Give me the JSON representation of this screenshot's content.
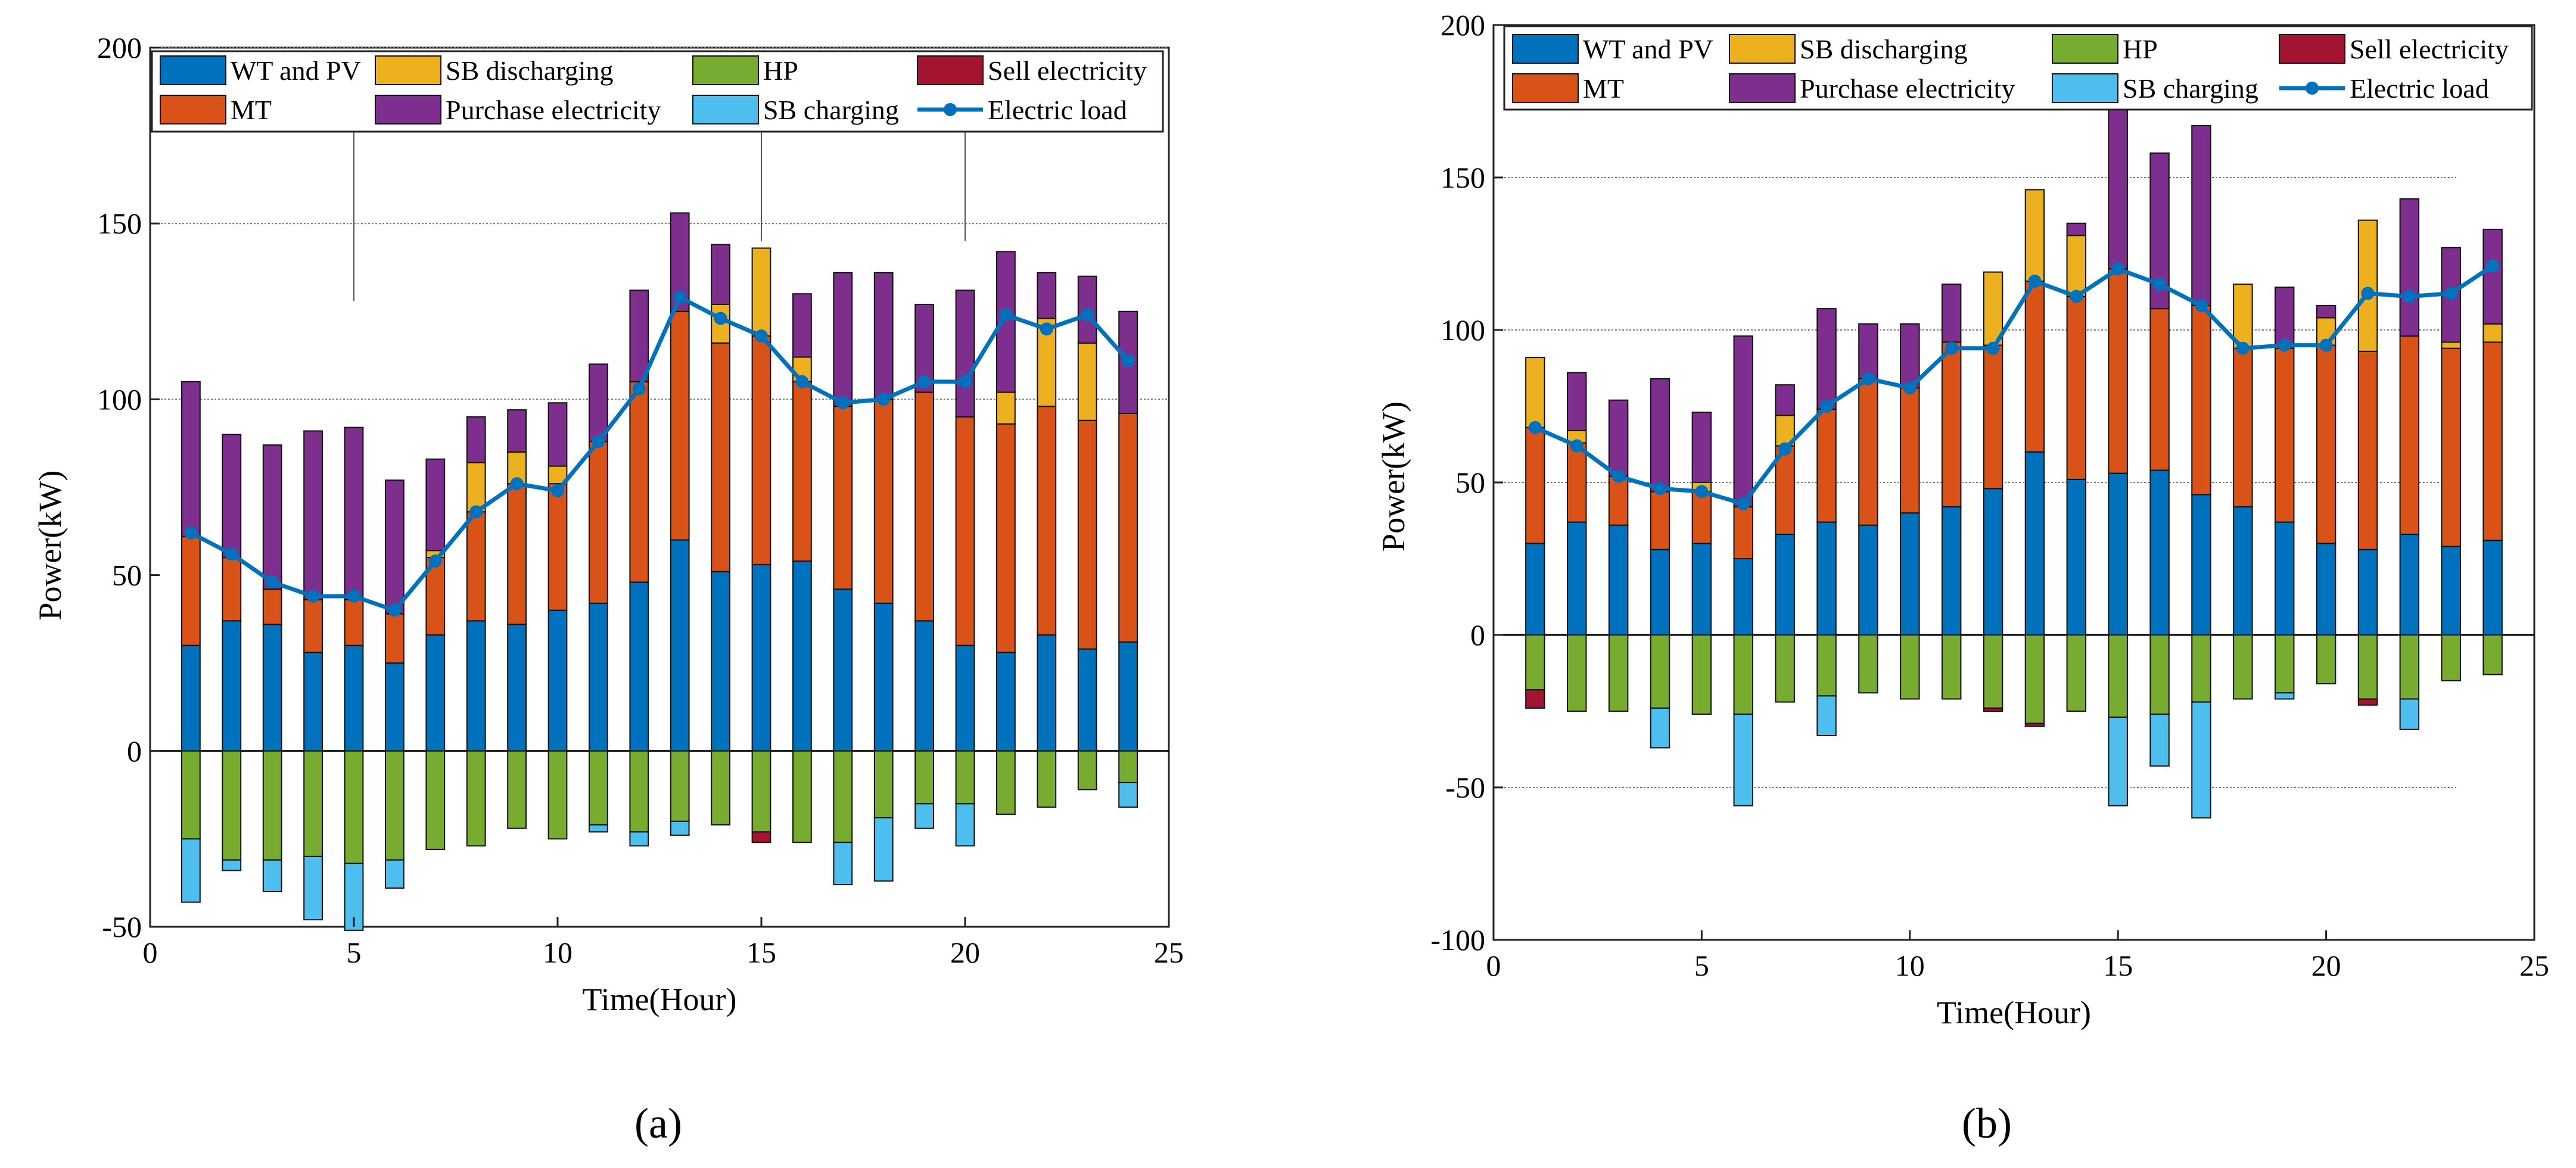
{
  "colors": {
    "wt_pv": "#0072BD",
    "mt": "#D95319",
    "sb_dis": "#EDB120",
    "purchase": "#7E2F8E",
    "hp": "#77AC30",
    "sb_ch": "#4DBEEE",
    "sell": "#A2142F",
    "load": "#0072BD"
  },
  "chart_data": [
    {
      "type": "bar",
      "id": "a",
      "panel_label": "(a)",
      "title": "",
      "xlabel": "Time(Hour)",
      "ylabel": "Power(kW)",
      "xlim": [
        0,
        25
      ],
      "ylim": [
        -50,
        200
      ],
      "xticks": [
        0,
        5,
        10,
        15,
        20,
        25
      ],
      "yticks": [
        -50,
        0,
        50,
        100,
        150,
        200
      ],
      "hours": [
        1,
        2,
        3,
        4,
        5,
        6,
        7,
        8,
        9,
        10,
        11,
        12,
        13,
        14,
        15,
        16,
        17,
        18,
        19,
        20,
        21,
        22,
        23,
        24
      ],
      "legend": [
        {
          "key": "wt_pv",
          "label": "WT and PV",
          "kind": "bar"
        },
        {
          "key": "sb_dis",
          "label": "SB discharging",
          "kind": "bar"
        },
        {
          "key": "hp",
          "label": "HP",
          "kind": "bar"
        },
        {
          "key": "sell",
          "label": "Sell electricity",
          "kind": "bar"
        },
        {
          "key": "mt",
          "label": "MT",
          "kind": "bar"
        },
        {
          "key": "purchase",
          "label": "Purchase electricity",
          "kind": "bar"
        },
        {
          "key": "sb_ch",
          "label": "SB charging",
          "kind": "bar"
        },
        {
          "key": "load",
          "label": "Electric load",
          "kind": "line"
        }
      ],
      "positive_series": [
        {
          "key": "wt_pv",
          "name": "WT and PV",
          "values": [
            30,
            37,
            36,
            28,
            30,
            25,
            33,
            37,
            36,
            40,
            42,
            48,
            60,
            51,
            53,
            54,
            46,
            42,
            37,
            30,
            28,
            33,
            29,
            31
          ]
        },
        {
          "key": "mt",
          "name": "MT",
          "values": [
            31,
            18,
            10,
            15,
            13,
            14,
            22,
            31,
            40,
            36,
            46,
            57,
            65,
            65,
            65,
            51,
            52,
            58,
            65,
            65,
            65,
            65,
            65,
            65
          ]
        },
        {
          "key": "sb_dis",
          "name": "SB discharging",
          "values": [
            0,
            0,
            0,
            0,
            0,
            0,
            2,
            14,
            9,
            5,
            0,
            0,
            0,
            11,
            25,
            7,
            0,
            0,
            0,
            0,
            9,
            25,
            22,
            0
          ]
        },
        {
          "key": "purchase",
          "name": "Purchase electricity",
          "values": [
            44,
            35,
            41,
            48,
            49,
            38,
            26,
            13,
            12,
            18,
            22,
            26,
            28,
            17,
            0,
            18,
            38,
            36,
            25,
            36,
            40,
            13,
            19,
            29
          ]
        }
      ],
      "negative_series": [
        {
          "key": "hp",
          "name": "HP",
          "values": [
            -25,
            -31,
            -31,
            -30,
            -32,
            -31,
            -28,
            -27,
            -22,
            -25,
            -21,
            -23,
            -20,
            -21,
            -23,
            -26,
            -26,
            -19,
            -15,
            -15,
            -18,
            -16,
            -11,
            -9
          ]
        },
        {
          "key": "sb_ch",
          "name": "SB charging",
          "values": [
            -18,
            -3,
            -9,
            -18,
            -19,
            -8,
            0,
            0,
            0,
            0,
            -2,
            -4,
            -4,
            0,
            0,
            0,
            -12,
            -18,
            -7,
            -12,
            0,
            0,
            0,
            -7
          ]
        },
        {
          "key": "sell",
          "name": "Sell electricity",
          "values": [
            0,
            0,
            0,
            0,
            0,
            0,
            0,
            0,
            0,
            0,
            0,
            0,
            0,
            0,
            -3,
            0,
            0,
            0,
            0,
            0,
            0,
            0,
            0,
            0
          ]
        }
      ],
      "load": {
        "name": "Electric load",
        "values": [
          62,
          56,
          48,
          44,
          44,
          40,
          54,
          68,
          76,
          74,
          88,
          103,
          129,
          123,
          118,
          105,
          99,
          100,
          105,
          105,
          124,
          120,
          124,
          111
        ]
      }
    },
    {
      "type": "bar",
      "id": "b",
      "panel_label": "(b)",
      "title": "",
      "xlabel": "Time(Hour)",
      "ylabel": "Power(kW)",
      "xlim": [
        0,
        25
      ],
      "ylim": [
        -100,
        200
      ],
      "xticks": [
        0,
        5,
        10,
        15,
        20,
        25
      ],
      "yticks": [
        -100,
        -50,
        0,
        50,
        100,
        150,
        200
      ],
      "hours": [
        1,
        2,
        3,
        4,
        5,
        6,
        7,
        8,
        9,
        10,
        11,
        12,
        13,
        14,
        15,
        16,
        17,
        18,
        19,
        20,
        21,
        22,
        23,
        24
      ],
      "legend": [
        {
          "key": "wt_pv",
          "label": "WT and PV",
          "kind": "bar"
        },
        {
          "key": "sb_dis",
          "label": "SB discharging",
          "kind": "bar"
        },
        {
          "key": "hp",
          "label": "HP",
          "kind": "bar"
        },
        {
          "key": "sell",
          "label": "Sell electricity",
          "kind": "bar"
        },
        {
          "key": "mt",
          "label": "MT",
          "kind": "bar"
        },
        {
          "key": "purchase",
          "label": "Purchase electricity",
          "kind": "bar"
        },
        {
          "key": "sb_ch",
          "label": "SB charging",
          "kind": "bar"
        },
        {
          "key": "load",
          "label": "Electric load",
          "kind": "line"
        }
      ],
      "positive_series": [
        {
          "key": "wt_pv",
          "name": "WT and PV",
          "values": [
            30,
            37,
            36,
            28,
            30,
            25,
            33,
            37,
            36,
            40,
            42,
            48,
            60,
            51,
            53,
            54,
            46,
            42,
            37,
            30,
            28,
            33,
            29,
            31
          ]
        },
        {
          "key": "mt",
          "name": "MT",
          "values": [
            38,
            26,
            16,
            19,
            17,
            17,
            29,
            37,
            48,
            41,
            54,
            47,
            56,
            60,
            67,
            53,
            62,
            52,
            57,
            65,
            65,
            65,
            65,
            65
          ]
        },
        {
          "key": "sb_dis",
          "name": "SB discharging",
          "values": [
            23,
            4,
            0,
            0,
            3,
            0,
            10,
            0,
            0,
            0,
            0,
            24,
            30,
            20,
            0,
            0,
            0,
            21,
            0,
            9,
            43,
            0,
            2,
            6
          ]
        },
        {
          "key": "purchase",
          "name": "Purchase electricity",
          "values": [
            0,
            19,
            25,
            37,
            23,
            56,
            10,
            33,
            18,
            21,
            19,
            0,
            0,
            4,
            55,
            51,
            59,
            0,
            20,
            4,
            0,
            45,
            31,
            31
          ]
        }
      ],
      "negative_series": [
        {
          "key": "hp",
          "name": "HP",
          "values": [
            -18,
            -25,
            -25,
            -24,
            -26,
            -26,
            -22,
            -20,
            -19,
            -21,
            -21,
            -24,
            -29,
            -25,
            -27,
            -26,
            -22,
            -21,
            -19,
            -16,
            -21,
            -21,
            -15,
            -13
          ]
        },
        {
          "key": "sb_ch",
          "name": "SB charging",
          "values": [
            0,
            0,
            0,
            -13,
            0,
            -30,
            0,
            -13,
            0,
            0,
            0,
            0,
            0,
            0,
            -29,
            -17,
            -38,
            0,
            -2,
            0,
            0,
            -10,
            0,
            0
          ]
        },
        {
          "key": "sell",
          "name": "Sell electricity",
          "values": [
            -6,
            0,
            0,
            0,
            0,
            0,
            0,
            0,
            0,
            0,
            0,
            -1,
            -1,
            0,
            0,
            0,
            0,
            0,
            0,
            0,
            -2,
            0,
            0,
            0
          ]
        }
      ],
      "load": {
        "name": "Electric load",
        "values": [
          68,
          62,
          52,
          48,
          47,
          43,
          61,
          75,
          84,
          81,
          94,
          94,
          116,
          111,
          120,
          115,
          108,
          94,
          95,
          95,
          112,
          111,
          112,
          121
        ]
      }
    }
  ]
}
